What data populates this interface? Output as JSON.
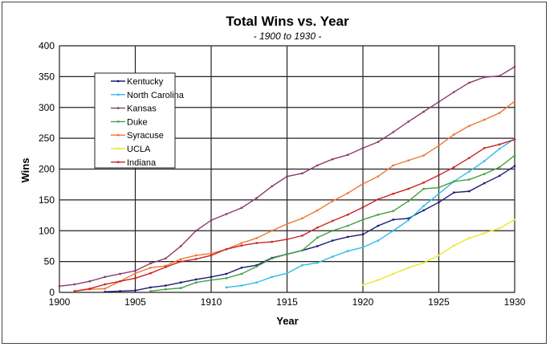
{
  "chart_data": {
    "type": "line",
    "title": "Total Wins vs. Year",
    "subtitle": "- 1900 to 1930 -",
    "xlabel": "Year",
    "ylabel": "Wins",
    "xlim": [
      1900,
      1930
    ],
    "ylim": [
      0,
      400
    ],
    "xticks": [
      1900,
      1905,
      1910,
      1915,
      1920,
      1925,
      1930
    ],
    "yticks": [
      0,
      50,
      100,
      150,
      200,
      250,
      300,
      350,
      400
    ],
    "grid": true,
    "legend_position": "top-left",
    "series": [
      {
        "name": "Kentucky",
        "color": "#1c1c78",
        "start": 1903,
        "values": [
          1,
          2,
          3,
          8,
          11,
          16,
          21,
          25,
          30,
          40,
          44,
          56,
          62,
          68,
          75,
          84,
          90,
          94,
          108,
          118,
          120,
          133,
          146,
          162,
          164,
          177,
          189,
          205
        ]
      },
      {
        "name": "North Carolina",
        "color": "#33bbe8",
        "start": 1911,
        "values": [
          8,
          11,
          16,
          25,
          31,
          44,
          48,
          58,
          67,
          73,
          84,
          100,
          117,
          140,
          160,
          180,
          196,
          213,
          233,
          249
        ]
      },
      {
        "name": "Kansas",
        "color": "#8b3a6b",
        "start": 1900,
        "values": [
          10,
          13,
          18,
          25,
          30,
          35,
          47,
          55,
          75,
          100,
          117,
          127,
          137,
          153,
          172,
          188,
          193,
          206,
          216,
          223,
          234,
          244,
          260,
          277,
          293,
          309,
          325,
          340,
          349,
          351,
          366
        ]
      },
      {
        "name": "Duke",
        "color": "#44a040",
        "start": 1906,
        "values": [
          2,
          5,
          7,
          16,
          20,
          23,
          30,
          42,
          55,
          62,
          68,
          89,
          100,
          108,
          118,
          126,
          132,
          148,
          168,
          170,
          180,
          183,
          192,
          203,
          222
        ]
      },
      {
        "name": "Syracuse",
        "color": "#ee7733",
        "start": 1901,
        "values": [
          2,
          5,
          6,
          18,
          31,
          40,
          43,
          54,
          60,
          63,
          70,
          80,
          88,
          100,
          111,
          120,
          133,
          148,
          161,
          176,
          188,
          206,
          214,
          222,
          238,
          256,
          270,
          280,
          291,
          310
        ]
      },
      {
        "name": "UCLA",
        "color": "#e8e833",
        "start": 1920,
        "values": [
          12,
          20,
          30,
          40,
          48,
          60,
          76,
          88,
          96,
          104,
          118
        ]
      },
      {
        "name": "Indiana",
        "color": "#cc2222",
        "start": 1901,
        "values": [
          2,
          6,
          13,
          18,
          23,
          31,
          41,
          50,
          54,
          60,
          70,
          76,
          80,
          82,
          86,
          92,
          105,
          116,
          126,
          138,
          151,
          160,
          168,
          178,
          190,
          203,
          218,
          234,
          240,
          248
        ]
      }
    ]
  }
}
